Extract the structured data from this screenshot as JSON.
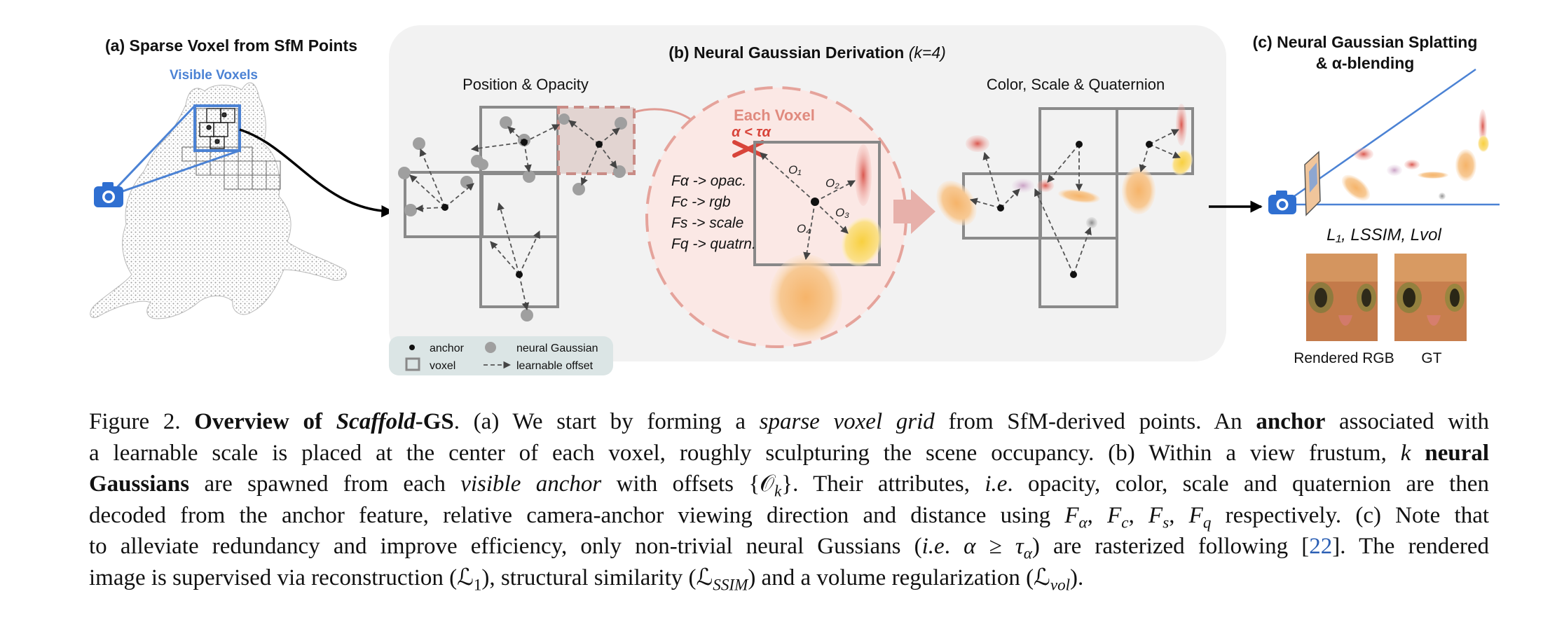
{
  "panel_a": {
    "title": "(a) Sparse Voxel from SfM Points",
    "visible_label": "Visible Voxels"
  },
  "panel_b": {
    "title_prefix": "(b) Neural Gaussian Derivation ",
    "title_k": "(k=4)",
    "pos_opacity": "Position & Opacity",
    "color_scale": "Color, Scale & Quaternion",
    "each_voxel": "Each Voxel",
    "alpha_cond": "α < τα",
    "offsets": [
      "O₁",
      "O₂",
      "O₃",
      "O₄"
    ],
    "decoders": [
      "Fα -> opac.",
      "Fc -> rgb",
      "Fs -> scale",
      "Fq -> quatrn."
    ],
    "legend": {
      "anchor": "anchor",
      "neural_gaussian": "neural Gaussian",
      "voxel": "voxel",
      "offset": "learnable offset"
    }
  },
  "panel_c": {
    "title_line1": "(c) Neural Gaussian Splatting",
    "title_line2": "& α-blending",
    "losses": "L₁, LSSIM, Lvol",
    "rendered": "Rendered RGB",
    "gt": "GT"
  },
  "caption": {
    "lines": [
      [
        {
          "t": "Figure 2.  "
        },
        {
          "t": "Overview of ",
          "b": true
        },
        {
          "t": "Scaffold",
          "b": true,
          "i": true
        },
        {
          "t": "-GS",
          "b": true
        },
        {
          "t": ". (a) We start by forming a "
        },
        {
          "t": "sparse voxel grid",
          "i": true
        },
        {
          "t": " from SfM-derived points.  An "
        },
        {
          "t": "anchor",
          "b": true
        },
        {
          "t": " associated with"
        }
      ],
      [
        {
          "t": "a learnable scale is placed at the center of each voxel, roughly sculpturing the scene occupancy.  (b) Within a view frustum, "
        },
        {
          "t": "k",
          "i": true
        },
        {
          "t": " "
        },
        {
          "t": "neural",
          "b": true
        }
      ],
      [
        {
          "t": "Gaussians",
          "b": true
        },
        {
          "t": " are spawned from each "
        },
        {
          "t": "visible anchor",
          "i": true
        },
        {
          "t": " with offsets {𝒪"
        },
        {
          "t": "k",
          "i": true,
          "sub": true
        },
        {
          "t": "}.  Their attributes, "
        },
        {
          "t": "i.e",
          "i": true
        },
        {
          "t": ". opacity, color, scale and quaternion are then"
        }
      ],
      [
        {
          "t": "decoded from the anchor feature, relative camera-anchor viewing direction and distance using "
        },
        {
          "t": "F",
          "i": true
        },
        {
          "t": "α",
          "i": true,
          "sub": true
        },
        {
          "t": ", "
        },
        {
          "t": "F",
          "i": true
        },
        {
          "t": "c",
          "i": true,
          "sub": true
        },
        {
          "t": ", "
        },
        {
          "t": "F",
          "i": true
        },
        {
          "t": "s",
          "i": true,
          "sub": true
        },
        {
          "t": ", "
        },
        {
          "t": "F",
          "i": true
        },
        {
          "t": "q",
          "i": true,
          "sub": true
        },
        {
          "t": " respectively.  (c) Note that"
        }
      ],
      [
        {
          "t": "to alleviate redundancy and improve efficiency, only non-trivial neural Gussians ("
        },
        {
          "t": "i.e",
          "i": true
        },
        {
          "t": ". "
        },
        {
          "t": "α",
          "i": true
        },
        {
          "t": " ≥ "
        },
        {
          "t": "τ",
          "i": true
        },
        {
          "t": "α",
          "i": true,
          "sub": true
        },
        {
          "t": ") are rasterized following ["
        },
        {
          "t": "22",
          "cite": true
        },
        {
          "t": "]. The rendered"
        }
      ],
      [
        {
          "t": "image is supervised via reconstruction (ℒ"
        },
        {
          "t": "1",
          "sub": true
        },
        {
          "t": "), structural similarity (ℒ"
        },
        {
          "t": "SSIM",
          "i": true,
          "sub": true
        },
        {
          "t": ") and a volume regularization (ℒ"
        },
        {
          "t": "vol",
          "i": true,
          "sub": true
        },
        {
          "t": ")."
        }
      ]
    ]
  }
}
